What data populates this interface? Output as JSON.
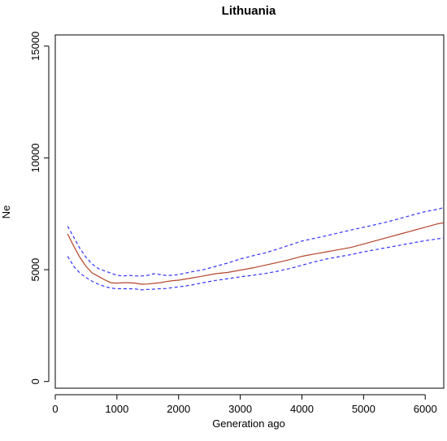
{
  "chart_data": {
    "type": "line",
    "title": "Lithuania",
    "xlabel": "Generation ago",
    "ylabel": "Ne",
    "xlim": [
      0,
      6300
    ],
    "ylim": [
      -300,
      15500
    ],
    "x_ticks": [
      {
        "value": 0,
        "label": "0"
      },
      {
        "value": 1000,
        "label": "1000"
      },
      {
        "value": 2000,
        "label": "2000"
      },
      {
        "value": 3000,
        "label": "3000"
      },
      {
        "value": 4000,
        "label": "4000"
      },
      {
        "value": 5000,
        "label": "5000"
      },
      {
        "value": 6000,
        "label": "6000"
      }
    ],
    "y_ticks": [
      {
        "value": 0,
        "label": "0"
      },
      {
        "value": 5000,
        "label": "5000"
      },
      {
        "value": 10000,
        "label": "10000"
      },
      {
        "value": 15000,
        "label": "15000"
      }
    ],
    "grid": false,
    "legend": "none",
    "series": [
      {
        "key": "estimate",
        "color": "#b5452b",
        "dashed": false,
        "x": [
          200,
          300,
          400,
          500,
          600,
          700,
          800,
          900,
          1000,
          1100,
          1200,
          1300,
          1400,
          1500,
          1600,
          1700,
          1800,
          1900,
          2000,
          2200,
          2400,
          2600,
          2800,
          3000,
          3200,
          3400,
          3600,
          3800,
          4000,
          4200,
          4400,
          4600,
          4800,
          5000,
          5200,
          5400,
          5600,
          5800,
          6000,
          6200,
          6300
        ],
        "y": [
          6600,
          6050,
          5550,
          5150,
          4850,
          4700,
          4550,
          4420,
          4400,
          4420,
          4420,
          4400,
          4350,
          4360,
          4390,
          4420,
          4470,
          4510,
          4530,
          4620,
          4720,
          4820,
          4880,
          4980,
          5080,
          5200,
          5320,
          5450,
          5600,
          5700,
          5800,
          5900,
          6000,
          6150,
          6300,
          6450,
          6600,
          6750,
          6900,
          7050,
          7100
        ]
      },
      {
        "key": "upper",
        "color": "#3333ff",
        "dashed": true,
        "x": [
          200,
          300,
          400,
          500,
          600,
          700,
          800,
          900,
          1000,
          1100,
          1200,
          1300,
          1400,
          1500,
          1600,
          1700,
          1800,
          1900,
          2000,
          2200,
          2400,
          2600,
          2800,
          3000,
          3200,
          3400,
          3600,
          3800,
          4000,
          4200,
          4400,
          4600,
          4800,
          5000,
          5200,
          5400,
          5600,
          5800,
          6000,
          6200,
          6300
        ],
        "y": [
          6950,
          6450,
          5950,
          5550,
          5250,
          5050,
          4950,
          4850,
          4750,
          4720,
          4750,
          4720,
          4720,
          4750,
          4820,
          4780,
          4740,
          4750,
          4780,
          4900,
          5000,
          5150,
          5300,
          5480,
          5620,
          5750,
          5920,
          6100,
          6280,
          6400,
          6520,
          6650,
          6780,
          6900,
          7020,
          7150,
          7300,
          7450,
          7600,
          7700,
          7780
        ]
      },
      {
        "key": "lower",
        "color": "#3333ff",
        "dashed": true,
        "x": [
          200,
          300,
          400,
          500,
          600,
          700,
          800,
          900,
          1000,
          1100,
          1200,
          1300,
          1400,
          1500,
          1600,
          1700,
          1800,
          1900,
          2000,
          2200,
          2400,
          2600,
          2800,
          3000,
          3200,
          3400,
          3600,
          3800,
          4000,
          4200,
          4400,
          4600,
          4800,
          5000,
          5200,
          5400,
          5600,
          5800,
          6000,
          6200,
          6300
        ],
        "y": [
          5600,
          5150,
          4850,
          4650,
          4480,
          4350,
          4250,
          4180,
          4150,
          4150,
          4150,
          4140,
          4100,
          4120,
          4130,
          4150,
          4160,
          4200,
          4230,
          4310,
          4420,
          4520,
          4600,
          4680,
          4750,
          4830,
          4930,
          5050,
          5200,
          5350,
          5480,
          5580,
          5680,
          5800,
          5900,
          6000,
          6100,
          6200,
          6300,
          6380,
          6420
        ]
      }
    ]
  }
}
